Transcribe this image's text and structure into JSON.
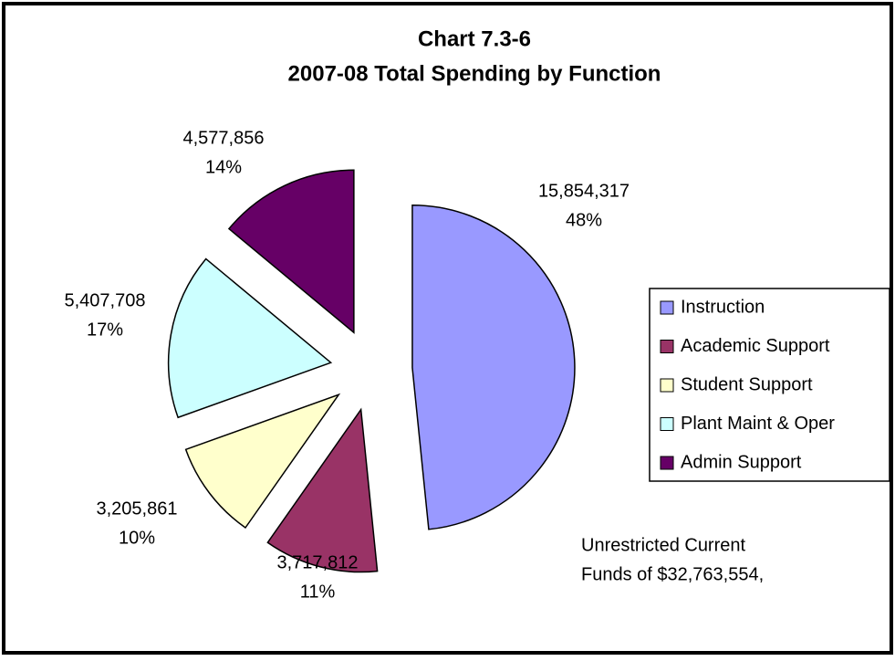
{
  "chart_data": {
    "type": "pie",
    "title": "Chart 7.3-6",
    "subtitle": "2007-08 Total Spending by Function",
    "categories": [
      "Instruction",
      "Academic Support",
      "Student Support",
      "Plant Maint & Oper",
      "Admin Support"
    ],
    "values": [
      15854317,
      3717812,
      3205861,
      5407708,
      4577856
    ],
    "value_labels": [
      "15,854,317",
      "3,717,812",
      "3,205,861",
      "5,407,708",
      "4,577,856"
    ],
    "percent_labels": [
      "48%",
      "11%",
      "10%",
      "17%",
      "14%"
    ],
    "colors": [
      "#9999ff",
      "#993366",
      "#ffffcc",
      "#ccffff",
      "#660066"
    ],
    "legend": "right",
    "annotation": [
      "Unrestricted Current",
      "Funds of $32,763,554,"
    ]
  }
}
